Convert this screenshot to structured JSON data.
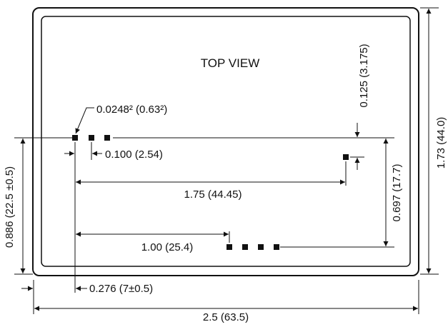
{
  "title": "TOP VIEW",
  "pin_size": "0.0248² (0.63²)",
  "pin_pitch": "0.100 (2.54)",
  "top_offset": "0.125 (3.175)",
  "row_spacing_long": "1.75 (44.45)",
  "row_spacing_short": "1.00 (25.4)",
  "vertical_pin_spacing": "0.697 (17.7)",
  "body_height": "1.73 (44.0)",
  "body_width": "2.5 (63.5)",
  "left_pin_height": "0.886 (22.5 ±0.5)",
  "left_edge_offset": "0.276 (7±0.5)",
  "colors": {
    "ink": "#111111",
    "background": "#ffffff"
  }
}
